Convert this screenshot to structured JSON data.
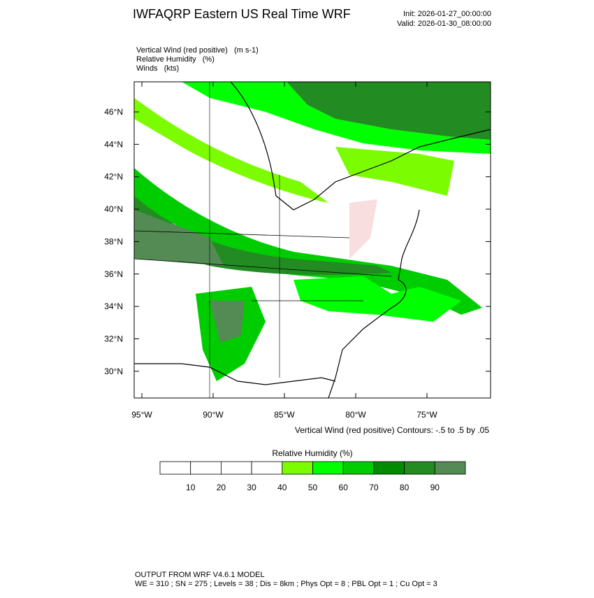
{
  "header": {
    "title": "IWFAQRP Eastern US Real Time WRF",
    "init": "Init: 2026-01-27_00:00:00",
    "valid": "Valid: 2026-01-30_08:00:00"
  },
  "fields": [
    "Vertical Wind (red positive)   (m s-1)",
    "Relative Humidity   (%)",
    "Winds   (kts)"
  ],
  "map": {
    "lat_labels": [
      "46°N",
      "44°N",
      "42°N",
      "40°N",
      "38°N",
      "36°N",
      "34°N",
      "32°N",
      "30°N"
    ],
    "lon_labels": [
      "95°W",
      "90°W",
      "85°W",
      "80°W",
      "75°W"
    ],
    "contour_note": "Vertical Wind (red positive) Contours: -.5 to .5 by .05"
  },
  "colorbar": {
    "title": "Relative Humidity  (%)",
    "colors": [
      "#ffffff",
      "#ffffff",
      "#ffffff",
      "#ffffff",
      "#7cfc00",
      "#00ff00",
      "#00cd00",
      "#008b00",
      "#228b22",
      "#548b54"
    ],
    "labels": [
      10,
      20,
      30,
      40,
      50,
      60,
      70,
      80,
      90
    ]
  },
  "footer": {
    "line1": "OUTPUT FROM WRF V4.6.1 MODEL",
    "line2": "WE = 310 ; SN = 275 ; Levels = 38 ; Dis = 8km ; Phys Opt = 8 ; PBL Opt = 1 ; Cu Opt = 3"
  }
}
